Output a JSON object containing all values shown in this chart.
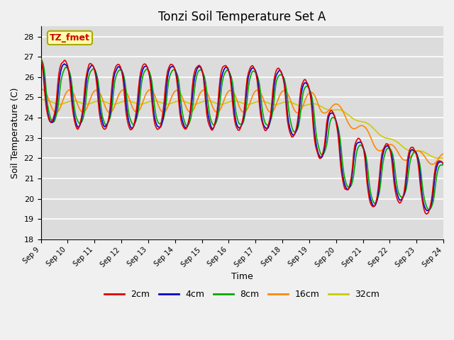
{
  "title": "Tonzi Soil Temperature Set A",
  "xlabel": "Time",
  "ylabel": "Soil Temperature (C)",
  "ylim": [
    18.0,
    28.5
  ],
  "yticks": [
    18.0,
    19.0,
    20.0,
    21.0,
    22.0,
    23.0,
    24.0,
    25.0,
    26.0,
    27.0,
    28.0
  ],
  "xtick_labels": [
    "Sep 9",
    "Sep 10",
    "Sep 11",
    "Sep 12",
    "Sep 13",
    "Sep 14",
    "Sep 15",
    "Sep 16",
    "Sep 17",
    "Sep 18",
    "Sep 19",
    "Sep 20",
    "Sep 21",
    "Sep 22",
    "Sep 23",
    "Sep 24"
  ],
  "legend_labels": [
    "2cm",
    "4cm",
    "8cm",
    "16cm",
    "32cm"
  ],
  "line_colors": [
    "#dd0000",
    "#0000cc",
    "#00aa00",
    "#ff8800",
    "#cccc00"
  ],
  "annotation_text": "TZ_fmet",
  "annotation_bg": "#ffffaa",
  "annotation_border": "#aaaa00",
  "background_color": "#dcdcdc",
  "grid_color": "#ffffff",
  "title_fontsize": 12
}
